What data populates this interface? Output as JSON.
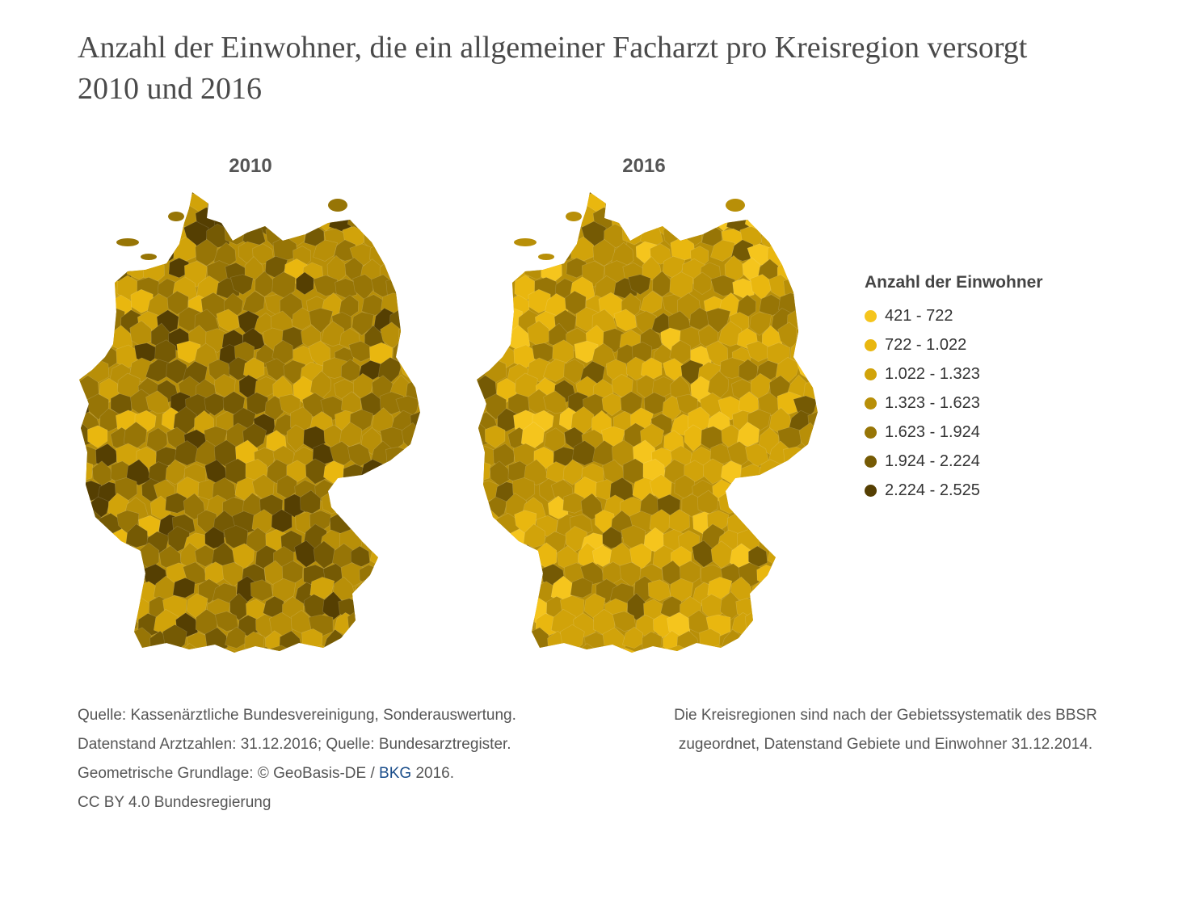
{
  "title": "Anzahl der Einwohner, die ein allgemeiner Facharzt pro Kreisregion versorgt 2010 und 2016",
  "maps": [
    {
      "label": "2010",
      "bias": 0.75
    },
    {
      "label": "2016",
      "bias": -0.45
    }
  ],
  "legend": {
    "title": "Anzahl der Einwohner",
    "items": [
      {
        "label": "421 - 722",
        "color": "#f5c51d"
      },
      {
        "label": "722 - 1.022",
        "color": "#e9b70f"
      },
      {
        "label": "1.022 - 1.323",
        "color": "#d1a30a"
      },
      {
        "label": "1.323 - 1.623",
        "color": "#b88f08"
      },
      {
        "label": "1.623 - 1.924",
        "color": "#977506"
      },
      {
        "label": "1.924 - 2.224",
        "color": "#755a04"
      },
      {
        "label": "2.224 - 2.525",
        "color": "#553f02"
      }
    ]
  },
  "footer": {
    "left": {
      "line1": "Quelle: Kassenärztliche Bundesvereinigung, Sonderauswertung.",
      "line2": "Datenstand Arztzahlen: 31.12.2016; Quelle: Bundesarztregister.",
      "line3_prefix": "Geometrische Grundlage: © GeoBasis-DE / ",
      "line3_link": "BKG",
      "line3_suffix": " 2016.",
      "line4": "CC BY 4.0 Bundesregierung"
    },
    "right": {
      "line1": "Die Kreisregionen sind nach der Gebietssystematik des BBSR",
      "line2": "zugeordnet, Datenstand Gebiete und Einwohner 31.12.2014."
    }
  }
}
